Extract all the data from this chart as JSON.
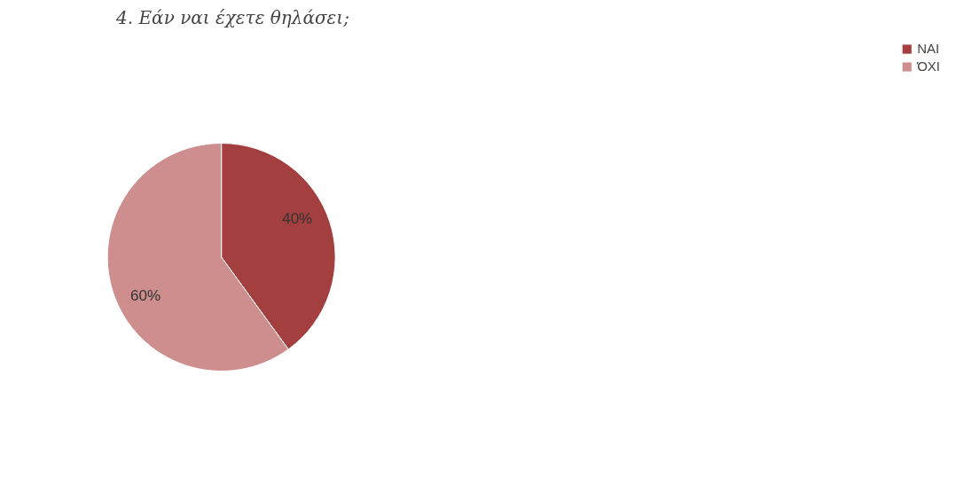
{
  "chart_data": {
    "type": "pie",
    "title": "4. Εάν ναι έχετε θηλάσει;",
    "categories": [
      "ΝΑΙ",
      "ΌΧΙ"
    ],
    "values": [
      40,
      60
    ],
    "colors": [
      "#a33f3f",
      "#cf8e8e"
    ],
    "value_labels": [
      "40%",
      "60%"
    ],
    "legend": "right"
  }
}
